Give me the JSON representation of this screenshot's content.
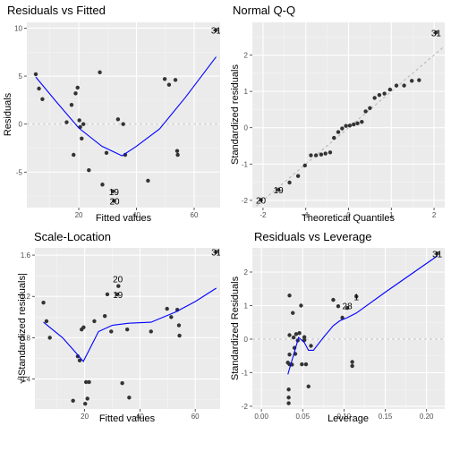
{
  "chart_data": [
    {
      "type": "scatter",
      "title": "Residuals vs Fitted",
      "xlabel": "Fitted values",
      "ylabel": "Residuals",
      "xlim": [
        2,
        69
      ],
      "ylim": [
        -8.7,
        10.6
      ],
      "xticks": [
        20,
        40,
        60
      ],
      "yticks": [
        -5,
        0,
        5,
        10
      ],
      "grid": true,
      "ref_line": {
        "type": "h",
        "value": 0
      },
      "points": [
        {
          "x": 5.1,
          "y": 5.2
        },
        {
          "x": 6.2,
          "y": 3.7
        },
        {
          "x": 7.4,
          "y": 2.6
        },
        {
          "x": 15.8,
          "y": 0.2
        },
        {
          "x": 17.5,
          "y": 2.0
        },
        {
          "x": 18.2,
          "y": -3.2
        },
        {
          "x": 18.9,
          "y": 3.2
        },
        {
          "x": 19.6,
          "y": 3.8
        },
        {
          "x": 20.2,
          "y": 0.4
        },
        {
          "x": 20.5,
          "y": -0.3
        },
        {
          "x": 21.0,
          "y": -1.5
        },
        {
          "x": 21.6,
          "y": 0.0
        },
        {
          "x": 23.5,
          "y": -4.8
        },
        {
          "x": 27.3,
          "y": 5.4
        },
        {
          "x": 28.2,
          "y": -6.3
        },
        {
          "x": 29.6,
          "y": -3.0
        },
        {
          "x": 31.8,
          "y": -7.0
        },
        {
          "x": 32.2,
          "y": -8.0
        },
        {
          "x": 33.6,
          "y": 0.5
        },
        {
          "x": 35.4,
          "y": 0.0
        },
        {
          "x": 36.1,
          "y": -3.2
        },
        {
          "x": 44.0,
          "y": -5.9
        },
        {
          "x": 49.8,
          "y": 4.7
        },
        {
          "x": 51.3,
          "y": 4.1
        },
        {
          "x": 53.5,
          "y": 4.6
        },
        {
          "x": 54.1,
          "y": -2.8
        },
        {
          "x": 54.3,
          "y": -3.2
        },
        {
          "x": 67.6,
          "y": 9.8
        }
      ],
      "smooth": [
        {
          "x": 5.1,
          "y": 4.9
        },
        {
          "x": 12,
          "y": 2.4
        },
        {
          "x": 20,
          "y": -0.4
        },
        {
          "x": 28,
          "y": -2.3
        },
        {
          "x": 35,
          "y": -3.3
        },
        {
          "x": 40,
          "y": -2.3
        },
        {
          "x": 48,
          "y": -0.5
        },
        {
          "x": 57,
          "y": 2.8
        },
        {
          "x": 67.6,
          "y": 7.0
        }
      ],
      "labels": [
        {
          "text": "31",
          "x": 67.6,
          "y": 9.8
        },
        {
          "text": "19",
          "x": 32.2,
          "y": -7.0
        },
        {
          "text": "20",
          "x": 32.4,
          "y": -8.0
        }
      ]
    },
    {
      "type": "scatter",
      "title": "Normal Q-Q",
      "xlabel": "Theoretical Quantiles",
      "ylabel": "Standardized residuals",
      "xlim": [
        -2.25,
        2.25
      ],
      "ylim": [
        -2.2,
        2.9
      ],
      "xticks": [
        -2,
        -1,
        0,
        1,
        2
      ],
      "yticks": [
        -2,
        -1,
        0,
        1,
        2
      ],
      "grid": true,
      "ref_line": {
        "type": "diag"
      },
      "points": [
        {
          "x": -2.05,
          "y": -1.99
        },
        {
          "x": -1.64,
          "y": -1.71
        },
        {
          "x": -1.38,
          "y": -1.51
        },
        {
          "x": -1.18,
          "y": -1.33
        },
        {
          "x": -1.02,
          "y": -1.04
        },
        {
          "x": -0.88,
          "y": -0.76
        },
        {
          "x": -0.76,
          "y": -0.76
        },
        {
          "x": -0.64,
          "y": -0.74
        },
        {
          "x": -0.54,
          "y": -0.71
        },
        {
          "x": -0.43,
          "y": -0.68
        },
        {
          "x": -0.34,
          "y": -0.28
        },
        {
          "x": -0.24,
          "y": -0.12
        },
        {
          "x": -0.15,
          "y": -0.02
        },
        {
          "x": -0.06,
          "y": 0.05
        },
        {
          "x": 0.03,
          "y": 0.06
        },
        {
          "x": 0.12,
          "y": 0.09
        },
        {
          "x": 0.21,
          "y": 0.12
        },
        {
          "x": 0.31,
          "y": 0.16
        },
        {
          "x": 0.4,
          "y": 0.45
        },
        {
          "x": 0.5,
          "y": 0.54
        },
        {
          "x": 0.61,
          "y": 0.82
        },
        {
          "x": 0.72,
          "y": 0.9
        },
        {
          "x": 0.84,
          "y": 0.94
        },
        {
          "x": 0.97,
          "y": 1.05
        },
        {
          "x": 1.12,
          "y": 1.16
        },
        {
          "x": 1.3,
          "y": 1.16
        },
        {
          "x": 1.48,
          "y": 1.29
        },
        {
          "x": 1.65,
          "y": 1.31
        },
        {
          "x": 2.05,
          "y": 2.62
        }
      ],
      "labels": [
        {
          "text": "31",
          "x": 2.05,
          "y": 2.62
        },
        {
          "text": "19",
          "x": -1.64,
          "y": -1.71
        },
        {
          "text": "20",
          "x": -2.05,
          "y": -1.99
        }
      ]
    },
    {
      "type": "scatter",
      "title": "Scale-Location",
      "xlabel": "Fitted values",
      "ylabel": "√|Standardized residuals|",
      "xlim": [
        2,
        69
      ],
      "ylim": [
        0.11,
        1.67
      ],
      "xticks": [
        20,
        40,
        60
      ],
      "yticks": [
        0.4,
        0.8,
        1.2,
        1.6
      ],
      "grid": true,
      "points": [
        {
          "x": 5.1,
          "y": 1.14
        },
        {
          "x": 6.2,
          "y": 0.96
        },
        {
          "x": 7.4,
          "y": 0.8
        },
        {
          "x": 15.8,
          "y": 0.19
        },
        {
          "x": 17.5,
          "y": 0.62
        },
        {
          "x": 18.2,
          "y": 0.58
        },
        {
          "x": 18.9,
          "y": 0.88
        },
        {
          "x": 19.6,
          "y": 0.9
        },
        {
          "x": 20.2,
          "y": 0.16
        },
        {
          "x": 20.5,
          "y": 0.37
        },
        {
          "x": 21.0,
          "y": 0.21
        },
        {
          "x": 21.6,
          "y": 0.37
        },
        {
          "x": 23.5,
          "y": 0.96
        },
        {
          "x": 27.3,
          "y": 1.01
        },
        {
          "x": 28.2,
          "y": 1.22
        },
        {
          "x": 29.6,
          "y": 0.86
        },
        {
          "x": 31.8,
          "y": 1.22
        },
        {
          "x": 32.2,
          "y": 1.3
        },
        {
          "x": 33.6,
          "y": 0.36
        },
        {
          "x": 35.4,
          "y": 0.88
        },
        {
          "x": 36.1,
          "y": 0.22
        },
        {
          "x": 44.0,
          "y": 0.86
        },
        {
          "x": 49.8,
          "y": 1.08
        },
        {
          "x": 51.3,
          "y": 1.0
        },
        {
          "x": 53.5,
          "y": 1.07
        },
        {
          "x": 54.1,
          "y": 0.92
        },
        {
          "x": 54.3,
          "y": 0.82
        },
        {
          "x": 67.6,
          "y": 1.63
        }
      ],
      "smooth": [
        {
          "x": 5.1,
          "y": 0.95
        },
        {
          "x": 12,
          "y": 0.8
        },
        {
          "x": 17,
          "y": 0.65
        },
        {
          "x": 19.5,
          "y": 0.57
        },
        {
          "x": 22,
          "y": 0.7
        },
        {
          "x": 25,
          "y": 0.86
        },
        {
          "x": 30,
          "y": 0.92
        },
        {
          "x": 36,
          "y": 0.94
        },
        {
          "x": 44,
          "y": 0.95
        },
        {
          "x": 53,
          "y": 1.05
        },
        {
          "x": 60,
          "y": 1.15
        },
        {
          "x": 67.6,
          "y": 1.28
        }
      ],
      "labels": [
        {
          "text": "31",
          "x": 67.6,
          "y": 1.63
        },
        {
          "text": "20",
          "x": 32.0,
          "y": 1.37
        },
        {
          "text": "19",
          "x": 32.0,
          "y": 1.22
        }
      ]
    },
    {
      "type": "scatter",
      "title": "Residuals vs Leverage",
      "xlabel": "Leverage",
      "ylabel": "Standardized Residuals",
      "xlim": [
        -0.011,
        0.222
      ],
      "ylim": [
        -2.08,
        2.72
      ],
      "xticks": [
        0.0,
        0.05,
        0.1,
        0.15,
        0.2
      ],
      "xtick_labels": [
        "0.00",
        "0.05",
        "0.10",
        "0.15",
        "0.20"
      ],
      "yticks": [
        -2,
        -1,
        0,
        1,
        2
      ],
      "grid": true,
      "ref_line": {
        "type": "h",
        "value": 0
      },
      "points": [
        {
          "x": 0.032,
          "y": -0.7
        },
        {
          "x": 0.033,
          "y": -1.5
        },
        {
          "x": 0.033,
          "y": -1.74
        },
        {
          "x": 0.033,
          "y": -1.91
        },
        {
          "x": 0.034,
          "y": 0.12
        },
        {
          "x": 0.034,
          "y": -0.46
        },
        {
          "x": 0.034,
          "y": -0.75
        },
        {
          "x": 0.034,
          "y": 1.3
        },
        {
          "x": 0.037,
          "y": -0.76
        },
        {
          "x": 0.038,
          "y": 0.78
        },
        {
          "x": 0.039,
          "y": 0.05
        },
        {
          "x": 0.04,
          "y": -0.26
        },
        {
          "x": 0.041,
          "y": -0.44
        },
        {
          "x": 0.042,
          "y": 0.15
        },
        {
          "x": 0.044,
          "y": -0.04
        },
        {
          "x": 0.046,
          "y": 0.18
        },
        {
          "x": 0.048,
          "y": 1.0
        },
        {
          "x": 0.049,
          "y": -0.75
        },
        {
          "x": 0.052,
          "y": 0.06
        },
        {
          "x": 0.052,
          "y": -0.03
        },
        {
          "x": 0.054,
          "y": -0.75
        },
        {
          "x": 0.057,
          "y": -1.41
        },
        {
          "x": 0.06,
          "y": -0.2
        },
        {
          "x": 0.087,
          "y": 1.17
        },
        {
          "x": 0.093,
          "y": 0.98
        },
        {
          "x": 0.098,
          "y": 0.64
        },
        {
          "x": 0.104,
          "y": 0.93
        },
        {
          "x": 0.11,
          "y": -0.68
        },
        {
          "x": 0.11,
          "y": -0.8
        },
        {
          "x": 0.115,
          "y": 1.27
        },
        {
          "x": 0.213,
          "y": 2.55
        }
      ],
      "smooth": [
        {
          "x": 0.032,
          "y": -1.05
        },
        {
          "x": 0.038,
          "y": -0.55
        },
        {
          "x": 0.045,
          "y": 0.05
        },
        {
          "x": 0.052,
          "y": -0.1
        },
        {
          "x": 0.057,
          "y": -0.33
        },
        {
          "x": 0.063,
          "y": -0.33
        },
        {
          "x": 0.075,
          "y": 0.05
        },
        {
          "x": 0.087,
          "y": 0.4
        },
        {
          "x": 0.095,
          "y": 0.55
        },
        {
          "x": 0.104,
          "y": 0.64
        },
        {
          "x": 0.115,
          "y": 0.78
        },
        {
          "x": 0.15,
          "y": 1.4
        },
        {
          "x": 0.213,
          "y": 2.48
        }
      ],
      "labels": [
        {
          "text": "31",
          "x": 0.213,
          "y": 2.55
        },
        {
          "text": "28",
          "x": 0.104,
          "y": 1.0
        },
        {
          "text": "1",
          "x": 0.115,
          "y": 1.27
        }
      ]
    }
  ]
}
